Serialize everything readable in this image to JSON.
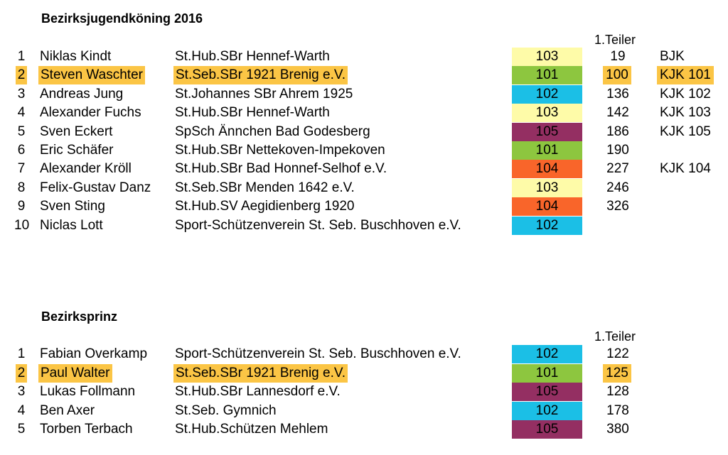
{
  "sections": [
    {
      "title": "Bezirksjugendköning  2016",
      "teiler_header": "1.Teiler",
      "rows": [
        {
          "rank": "1",
          "name": "Niklas Kindt",
          "club": "St.Hub.SBr Hennef-Warth",
          "code": "103",
          "teiler": "19",
          "kjk": "BJK",
          "highlight": false
        },
        {
          "rank": "2",
          "name": "Steven Waschter",
          "club": "St.Seb.SBr 1921 Brenig e.V.",
          "code": "101",
          "teiler": "100",
          "kjk": "KJK 101",
          "highlight": true
        },
        {
          "rank": "3",
          "name": "Andreas Jung",
          "club": "St.Johannes SBr Ahrem 1925",
          "code": "102",
          "teiler": "136",
          "kjk": "KJK 102",
          "highlight": false
        },
        {
          "rank": "4",
          "name": "Alexander Fuchs",
          "club": "St.Hub.SBr Hennef-Warth",
          "code": "103",
          "teiler": "142",
          "kjk": "KJK 103",
          "highlight": false
        },
        {
          "rank": "5",
          "name": "Sven Eckert",
          "club": "SpSch Ännchen Bad Godesberg",
          "code": "105",
          "teiler": "186",
          "kjk": "KJK 105",
          "highlight": false
        },
        {
          "rank": "6",
          "name": "Eric Schäfer",
          "club": "St.Hub.SBr Nettekoven-Impekoven",
          "code": "101",
          "teiler": "190",
          "kjk": "",
          "highlight": false
        },
        {
          "rank": "7",
          "name": "Alexander Kröll",
          "club": "St.Hub.SBr Bad Honnef-Selhof e.V.",
          "code": "104",
          "teiler": "227",
          "kjk": "KJK 104",
          "highlight": false
        },
        {
          "rank": "8",
          "name": "Felix-Gustav Danz",
          "club": "St.Seb.SBr Menden 1642 e.V.",
          "code": "103",
          "teiler": "246",
          "kjk": "",
          "highlight": false
        },
        {
          "rank": "9",
          "name": "Sven Sting",
          "club": "St.Hub.SV Aegidienberg 1920",
          "code": "104",
          "teiler": "326",
          "kjk": "",
          "highlight": false
        },
        {
          "rank": "10",
          "name": "Niclas Lott",
          "club": "Sport-Schützenverein St. Seb. Buschhoven e.V.",
          "code": "102",
          "teiler": "",
          "kjk": "",
          "highlight": false
        }
      ]
    },
    {
      "title": "Bezirksprinz",
      "teiler_header": "1.Teiler",
      "rows": [
        {
          "rank": "1",
          "name": "Fabian Overkamp",
          "club": "Sport-Schützenverein St. Seb. Buschhoven e.V.",
          "code": "102",
          "teiler": "122",
          "kjk": "",
          "highlight": false
        },
        {
          "rank": "2",
          "name": "Paul Walter",
          "club": "St.Seb.SBr 1921 Brenig e.V.",
          "code": "101",
          "teiler": "125",
          "kjk": "",
          "highlight": true
        },
        {
          "rank": "3",
          "name": "Lukas Follmann",
          "club": "St.Hub.SBr Lannesdorf e.V.",
          "code": "105",
          "teiler": "128",
          "kjk": "",
          "highlight": false
        },
        {
          "rank": "4",
          "name": "Ben Axer",
          "club": "St.Seb. Gymnich",
          "code": "102",
          "teiler": "178",
          "kjk": "",
          "highlight": false
        },
        {
          "rank": "5",
          "name": "Torben Terbach",
          "club": "St.Hub.Schützen Mehlem",
          "code": "105",
          "teiler": "380",
          "kjk": "",
          "highlight": false
        }
      ]
    }
  ],
  "code_colors": {
    "101": "#8dc63f",
    "102": "#1bbfe6",
    "103": "#fefba8",
    "104": "#f9652a",
    "105": "#942f62"
  },
  "highlight_color": "#fbc545"
}
